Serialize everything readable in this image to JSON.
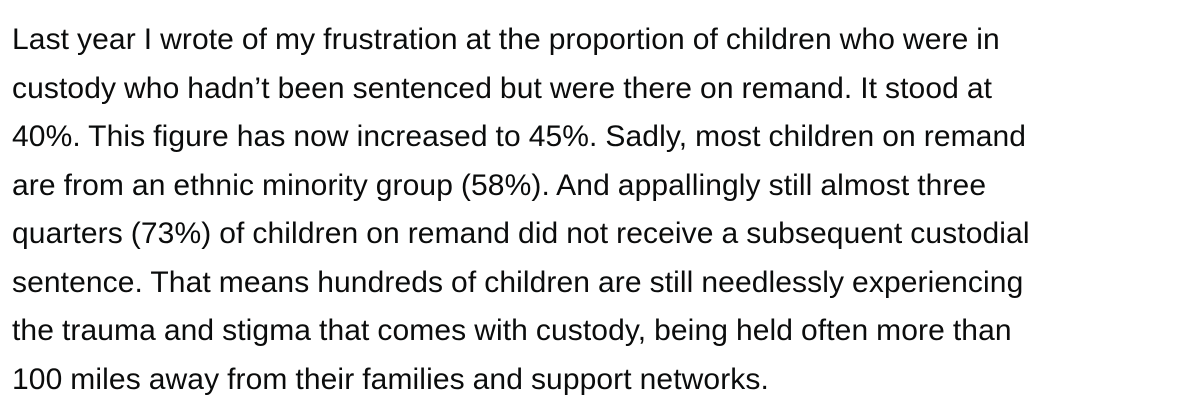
{
  "paragraph": {
    "lines": [
      "Last year I wrote of my frustration at the proportion of children who were in",
      "custody who hadn’t been sentenced but were there on remand. It stood at",
      "40%. This figure has now increased to 45%. Sadly, most children on remand",
      "are from an ethnic minority group (58%). And appallingly still almost three",
      "quarters (73%) of children on remand did not receive a subsequent custodial",
      "sentence. That means hundreds of children are still needlessly experiencing",
      "the trauma and stigma that comes with custody, being held often more than",
      "100 miles away from their families and support networks."
    ]
  }
}
